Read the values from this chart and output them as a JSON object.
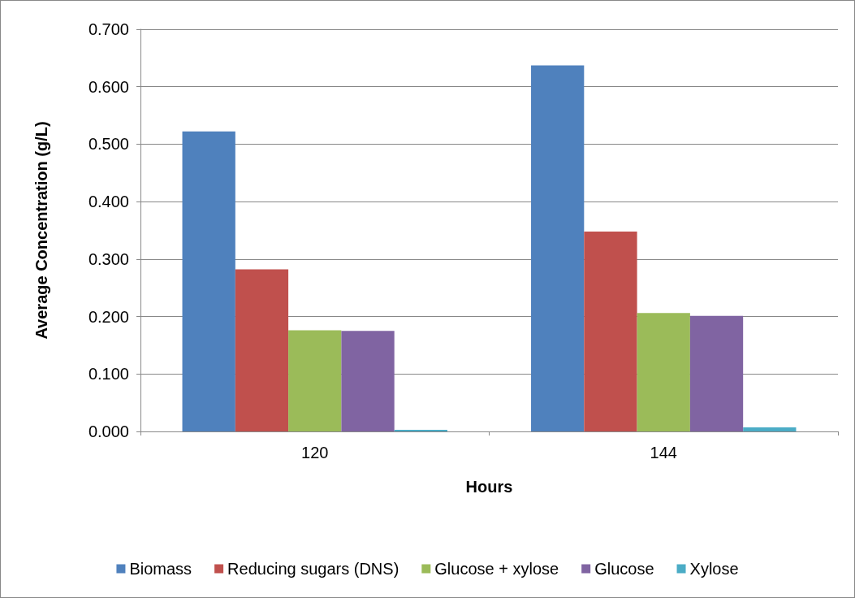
{
  "chart_data": {
    "type": "bar",
    "xlabel": "Hours",
    "ylabel": "Average Concentration (g/L)",
    "categories": [
      "120",
      "144"
    ],
    "series": [
      {
        "name": "Biomass",
        "color": "#4f81bd",
        "values": [
          0.522,
          0.637
        ]
      },
      {
        "name": "Reducing sugars (DNS)",
        "color": "#c0504d",
        "values": [
          0.282,
          0.348
        ]
      },
      {
        "name": "Glucose + xylose",
        "color": "#9bbb59",
        "values": [
          0.176,
          0.206
        ]
      },
      {
        "name": "Glucose",
        "color": "#8064a2",
        "values": [
          0.175,
          0.201
        ]
      },
      {
        "name": "Xylose",
        "color": "#4bacc6",
        "values": [
          0.003,
          0.007
        ]
      }
    ],
    "ylim": [
      0,
      0.7
    ],
    "yticks": [
      {
        "value": 0,
        "label": "0.000"
      },
      {
        "value": 0.1,
        "label": "0.100"
      },
      {
        "value": 0.2,
        "label": "0.200"
      },
      {
        "value": 0.3,
        "label": "0.300"
      },
      {
        "value": 0.4,
        "label": "0.400"
      },
      {
        "value": 0.5,
        "label": "0.500"
      },
      {
        "value": 0.6,
        "label": "0.600"
      },
      {
        "value": 0.7,
        "label": "0.700"
      }
    ],
    "grid": "y",
    "legend": "bottom"
  }
}
